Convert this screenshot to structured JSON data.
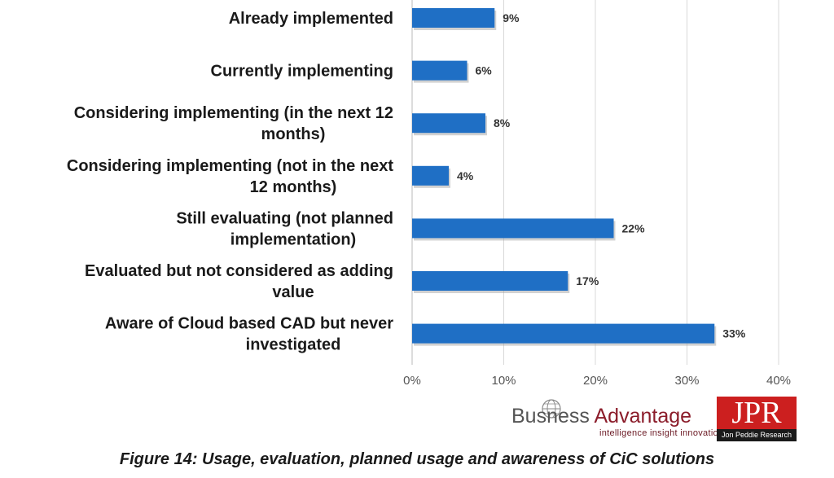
{
  "chart_data": {
    "type": "bar",
    "orientation": "horizontal",
    "categories": [
      [
        "Already implemented"
      ],
      [
        "Currently implementing"
      ],
      [
        "Considering implementing (in the next 12",
        "months)"
      ],
      [
        "Considering implementing (not in the next",
        "12 months)"
      ],
      [
        "Still evaluating (not planned",
        "implementation)"
      ],
      [
        "Evaluated but not considered as adding",
        "value"
      ],
      [
        "Aware of Cloud based CAD but never",
        "investigated"
      ]
    ],
    "values": [
      9,
      6,
      8,
      4,
      22,
      17,
      33
    ],
    "value_labels": [
      "9%",
      "6%",
      "8%",
      "4%",
      "22%",
      "17%",
      "33%"
    ],
    "xlim": [
      0,
      40
    ],
    "xticks": [
      "0%",
      "10%",
      "20%",
      "30%",
      "40%"
    ],
    "grid": true,
    "bar_color": "#1f6fc5"
  },
  "logo": {
    "business": "Bus",
    "ness": "ness",
    "advantage": "Advantage",
    "tagline": "intelligence  insight  innovation",
    "jpr": "JPR",
    "jpr_sub": "Jon Peddie Research"
  },
  "caption": "Figure 14: Usage, evaluation, planned usage and awareness of CiC solutions"
}
